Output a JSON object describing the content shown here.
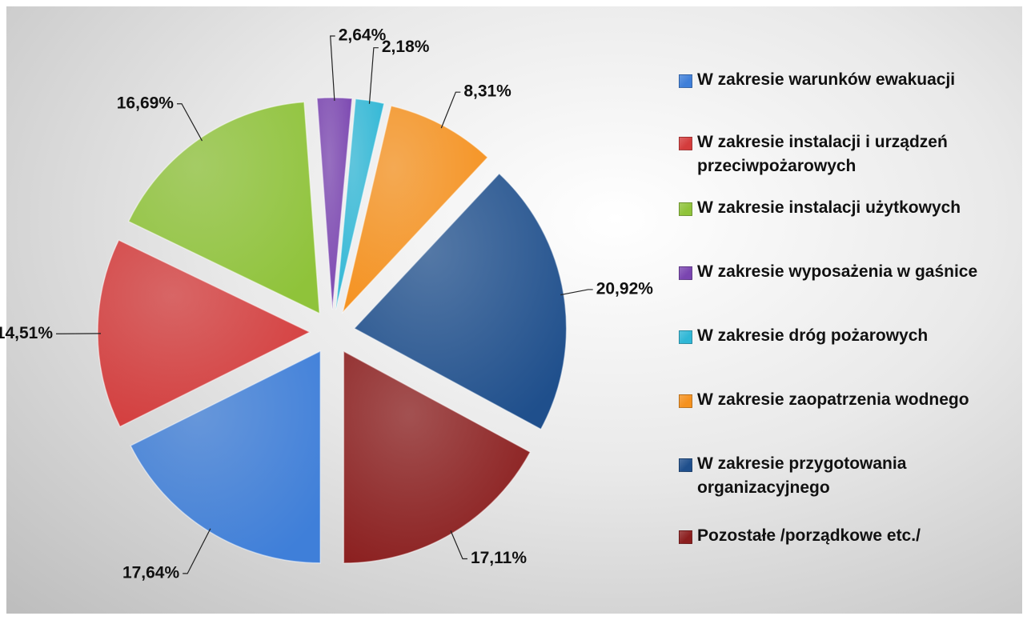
{
  "chart_data": {
    "type": "pie",
    "categories": [
      "W zakresie warunków ewakuacji",
      "W zakresie instalacji i urządzeń przeciwpożarowych",
      "W zakresie instalacji użytkowych",
      "W zakresie wyposażenia w gaśnice",
      "W zakresie dróg pożarowych",
      "W zakresie zaopatrzenia wodnego",
      "W zakresie przygotowania organizacyjnego",
      "Pozostałe /porządkowe etc./"
    ],
    "values": [
      17.64,
      14.51,
      16.69,
      2.64,
      2.18,
      8.31,
      20.92,
      17.11
    ],
    "value_labels": [
      "17,64%",
      "14,51%",
      "16,69%",
      "2,64%",
      "2,18%",
      "8,31%",
      "20,92%",
      "17,11%"
    ],
    "colors": [
      "#3f7fd9",
      "#d43c3c",
      "#8fc33a",
      "#7a45b0",
      "#2fb7d6",
      "#f5911e",
      "#1f4f8c",
      "#8b1e1e"
    ],
    "legend": "right"
  }
}
